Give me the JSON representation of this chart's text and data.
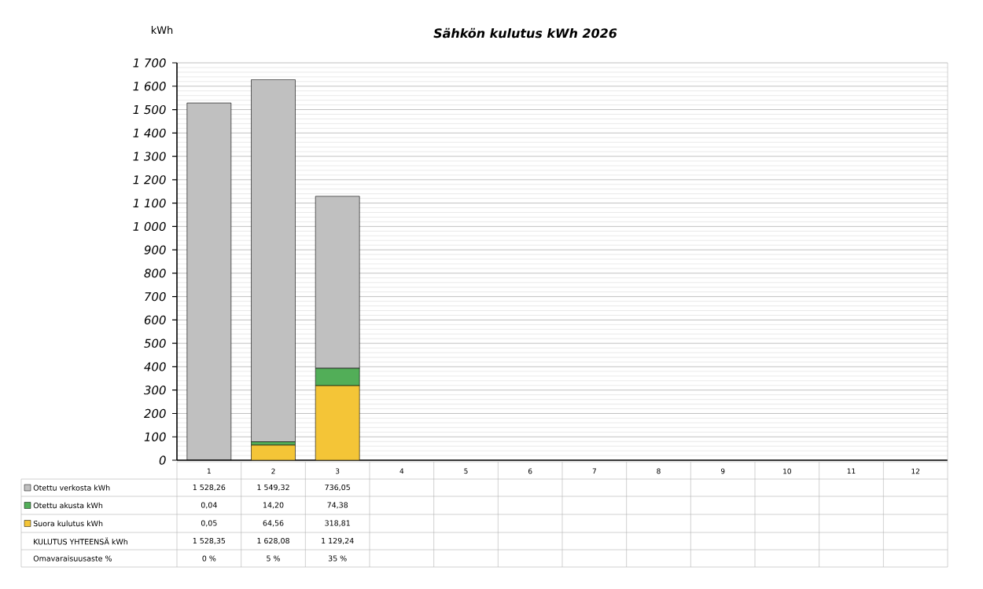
{
  "chart_data": {
    "type": "bar",
    "title": "Sähkön kulutus kWh 2026",
    "ylabel": "kWh",
    "categories": [
      "1",
      "2",
      "3",
      "4",
      "5",
      "6",
      "7",
      "8",
      "9",
      "10",
      "11",
      "12"
    ],
    "stacked": true,
    "grid": "y",
    "legend": "bottom",
    "series": [
      {
        "name": "Suora kulutus kWh",
        "color": "#f4c537",
        "values": [
          0.05,
          64.56,
          318.81,
          null,
          null,
          null,
          null,
          null,
          null,
          null,
          null,
          null
        ],
        "value_labels": [
          "0,05",
          "64,56",
          "318,81",
          null,
          null,
          null,
          null,
          null,
          null,
          null,
          null,
          null
        ]
      },
      {
        "name": "Otettu akusta kWh",
        "color": "#52ae58",
        "values": [
          0.04,
          14.2,
          74.38,
          null,
          null,
          null,
          null,
          null,
          null,
          null,
          null,
          null
        ],
        "value_labels": [
          "0,04",
          "14,20",
          "74,38",
          null,
          null,
          null,
          null,
          null,
          null,
          null,
          null,
          null
        ]
      },
      {
        "name": "Otettu verkosta kWh",
        "color": "#c0c0c0",
        "values": [
          1528.26,
          1549.32,
          736.05,
          null,
          null,
          null,
          null,
          null,
          null,
          null,
          null,
          null
        ],
        "value_labels": [
          "1 528,26",
          "1 549,32",
          "736,05",
          null,
          null,
          null,
          null,
          null,
          null,
          null,
          null,
          null
        ]
      }
    ],
    "ylim": [
      0,
      1700
    ],
    "yticks": [
      0,
      100,
      200,
      300,
      400,
      500,
      600,
      700,
      800,
      900,
      {
        "value": 1000,
        "label": "1 000"
      },
      {
        "value": 1100,
        "label": "1 100"
      },
      {
        "value": 1200,
        "label": "1 200"
      },
      {
        "value": 1300,
        "label": "1 300"
      },
      {
        "value": 1400,
        "label": "1 400"
      },
      {
        "value": 1500,
        "label": "1 500"
      },
      {
        "value": 1600,
        "label": "1 600"
      },
      {
        "value": 1700,
        "label": "1 700"
      }
    ],
    "annotations": [
      "KULUTUS YHTEENSÄ kWh",
      "1 528,35",
      "1 628,08",
      "1 129,24",
      "Omavaraisuusaste %",
      "0 %",
      "5 %",
      "35 %"
    ]
  }
}
